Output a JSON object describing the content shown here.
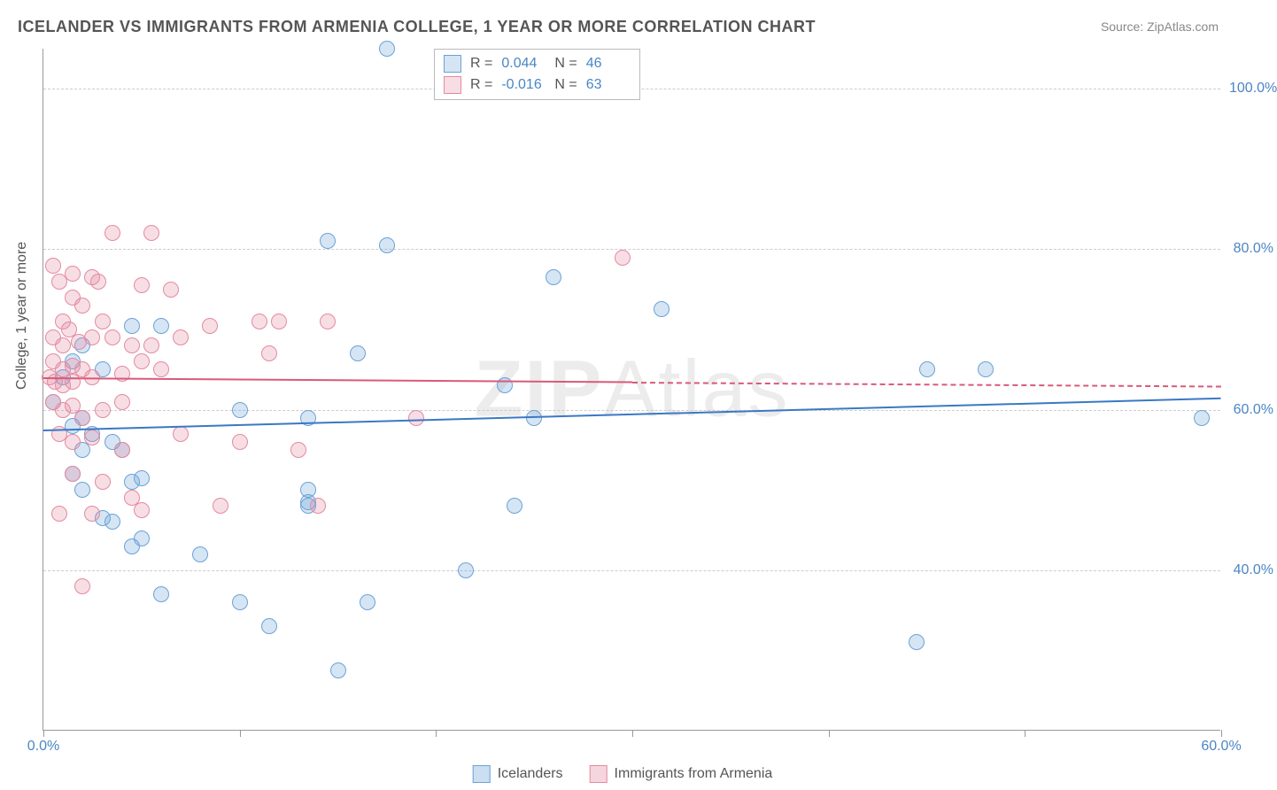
{
  "title": "ICELANDER VS IMMIGRANTS FROM ARMENIA COLLEGE, 1 YEAR OR MORE CORRELATION CHART",
  "source_label": "Source:",
  "source_value": "ZipAtlas.com",
  "watermark_a": "ZIP",
  "watermark_b": "Atlas",
  "ylabel": "College, 1 year or more",
  "chart": {
    "type": "scatter",
    "xlim": [
      0,
      60
    ],
    "ylim": [
      20,
      105
    ],
    "xticks": [
      0,
      10,
      20,
      30,
      40,
      50,
      60
    ],
    "xtick_labels": [
      "0.0%",
      "",
      "",
      "",
      "",
      "",
      "60.0%"
    ],
    "yticks": [
      40,
      60,
      80,
      100
    ],
    "ytick_labels": [
      "40.0%",
      "60.0%",
      "80.0%",
      "100.0%"
    ],
    "background_color": "#ffffff",
    "grid_color": "#cccccc",
    "axis_color": "#999999",
    "tick_label_color": "#4a86c5",
    "point_radius": 9,
    "point_border_width": 1.5,
    "point_fill_opacity": 0.25,
    "series": [
      {
        "name": "Icelanders",
        "color": "#6aa2d8",
        "fill": "rgba(106,162,216,0.28)",
        "R": "0.044",
        "N": "46",
        "trend": {
          "x0": 0,
          "y0": 57.5,
          "x1": 60,
          "y1": 61.5,
          "color": "#3b78c4",
          "width": 2.5,
          "dash_after_x": null
        },
        "points": [
          [
            17.5,
            105
          ],
          [
            14.5,
            81
          ],
          [
            17.5,
            80.5
          ],
          [
            26,
            76.5
          ],
          [
            31.5,
            72.5
          ],
          [
            4.5,
            70.5
          ],
          [
            6,
            70.5
          ],
          [
            2,
            68
          ],
          [
            1.5,
            66
          ],
          [
            1,
            64
          ],
          [
            16,
            67
          ],
          [
            23.5,
            63
          ],
          [
            25,
            59
          ],
          [
            13.5,
            59
          ],
          [
            10,
            60
          ],
          [
            0.5,
            61
          ],
          [
            1.5,
            58
          ],
          [
            2.5,
            57
          ],
          [
            3.5,
            56
          ],
          [
            2,
            55
          ],
          [
            4,
            55
          ],
          [
            1.5,
            52
          ],
          [
            2,
            50
          ],
          [
            4.5,
            51
          ],
          [
            5,
            51.5
          ],
          [
            13.5,
            50
          ],
          [
            3,
            46.5
          ],
          [
            3.5,
            46
          ],
          [
            4.5,
            43
          ],
          [
            5,
            44
          ],
          [
            8,
            42
          ],
          [
            13.5,
            48
          ],
          [
            13.5,
            48.5
          ],
          [
            21.5,
            40
          ],
          [
            16.5,
            36
          ],
          [
            6,
            37
          ],
          [
            10,
            36
          ],
          [
            11.5,
            33
          ],
          [
            15,
            27.5
          ],
          [
            24,
            48
          ],
          [
            2,
            59
          ],
          [
            44.5,
            31
          ],
          [
            45,
            65
          ],
          [
            48,
            65
          ],
          [
            59,
            59
          ],
          [
            3,
            65
          ]
        ]
      },
      {
        "name": "Immigrants from Armenia",
        "color": "#e48aa0",
        "fill": "rgba(228,138,160,0.28)",
        "R": "-0.016",
        "N": "63",
        "trend": {
          "x0": 0,
          "y0": 64,
          "x1": 60,
          "y1": 63,
          "color": "#d85a7a",
          "width": 2,
          "dash_after_x": 30
        },
        "points": [
          [
            3.5,
            82
          ],
          [
            5.5,
            82
          ],
          [
            0.5,
            78
          ],
          [
            0.8,
            76
          ],
          [
            1.5,
            77
          ],
          [
            2.5,
            76.5
          ],
          [
            2.8,
            76
          ],
          [
            1.5,
            74
          ],
          [
            2,
            73
          ],
          [
            5,
            75.5
          ],
          [
            6.5,
            75
          ],
          [
            3,
            71
          ],
          [
            1,
            71
          ],
          [
            1.3,
            70
          ],
          [
            0.5,
            69
          ],
          [
            1,
            68
          ],
          [
            1.8,
            68.5
          ],
          [
            2.5,
            69
          ],
          [
            3.5,
            69
          ],
          [
            4.5,
            68
          ],
          [
            5.5,
            68
          ],
          [
            7,
            69
          ],
          [
            8.5,
            70.5
          ],
          [
            11,
            71
          ],
          [
            12,
            71
          ],
          [
            14.5,
            71
          ],
          [
            0.5,
            66
          ],
          [
            1,
            65
          ],
          [
            1.5,
            65.5
          ],
          [
            2,
            65
          ],
          [
            0.3,
            64
          ],
          [
            0.6,
            63.5
          ],
          [
            1,
            63
          ],
          [
            1.5,
            63.5
          ],
          [
            2.5,
            64
          ],
          [
            4,
            64.5
          ],
          [
            5,
            66
          ],
          [
            6,
            65
          ],
          [
            11.5,
            67
          ],
          [
            0.5,
            61
          ],
          [
            1,
            60
          ],
          [
            1.5,
            60.5
          ],
          [
            2,
            59
          ],
          [
            3,
            60
          ],
          [
            4,
            61
          ],
          [
            0.8,
            57
          ],
          [
            1.5,
            56
          ],
          [
            2.5,
            56.5
          ],
          [
            4,
            55
          ],
          [
            7,
            57
          ],
          [
            10,
            56
          ],
          [
            13,
            55
          ],
          [
            19,
            59
          ],
          [
            1.5,
            52
          ],
          [
            3,
            51
          ],
          [
            4.5,
            49
          ],
          [
            9,
            48
          ],
          [
            0.8,
            47
          ],
          [
            2.5,
            47
          ],
          [
            5,
            47.5
          ],
          [
            2,
            38
          ],
          [
            29.5,
            79
          ],
          [
            14,
            48
          ]
        ]
      }
    ]
  },
  "legend_bottom": [
    {
      "label": "Icelanders",
      "color": "#6aa2d8",
      "fill": "rgba(106,162,216,0.35)"
    },
    {
      "label": "Immigrants from Armenia",
      "color": "#e48aa0",
      "fill": "rgba(228,138,160,0.35)"
    }
  ],
  "stats_box": {
    "r_label": "R",
    "n_label": "N",
    "eq": "="
  }
}
